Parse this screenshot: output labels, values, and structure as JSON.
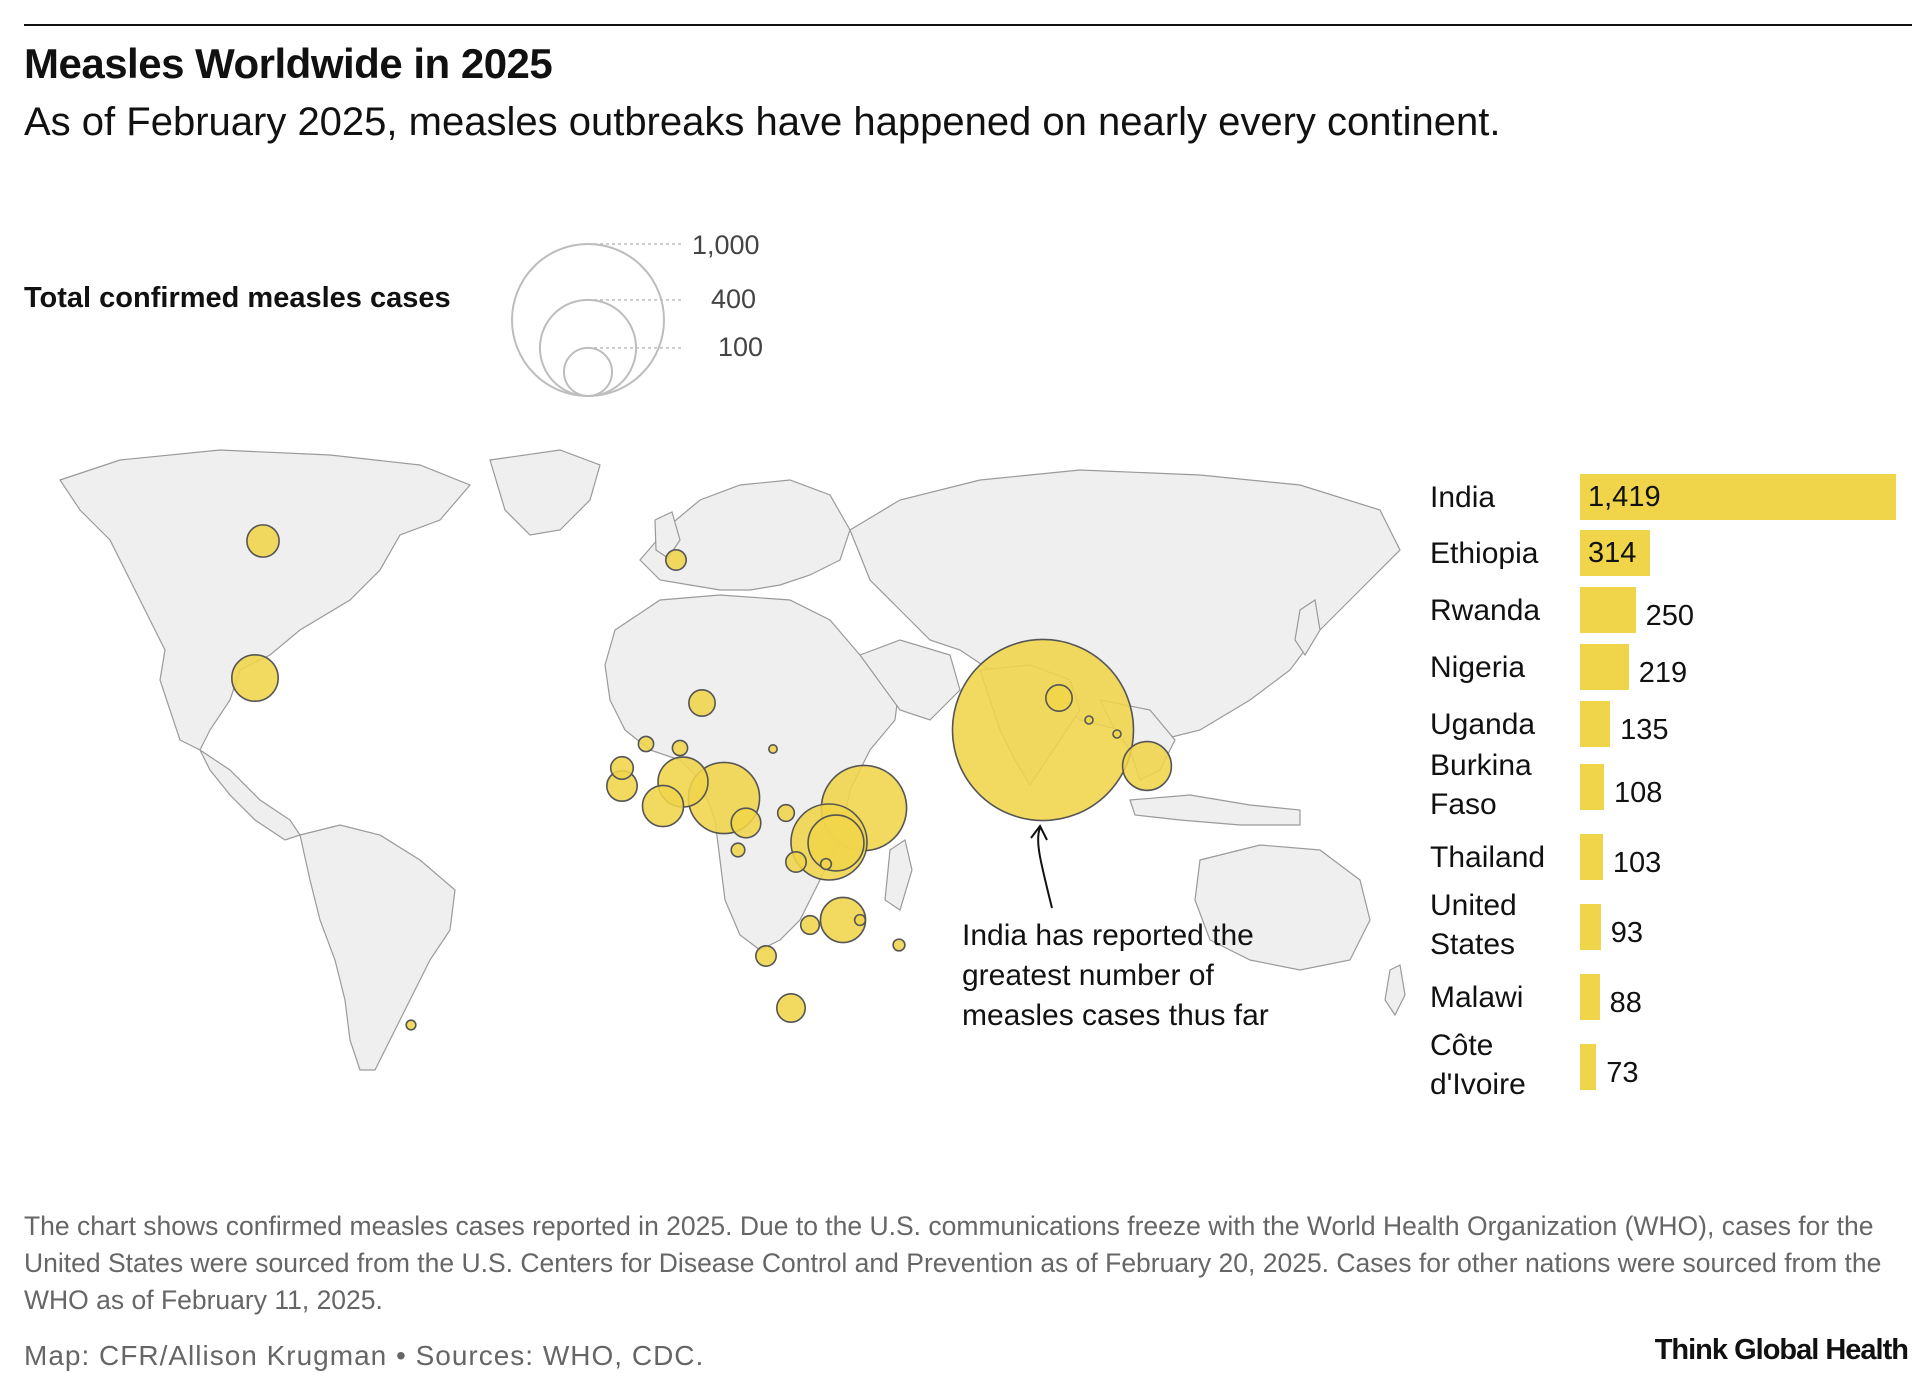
{
  "title": "Measles Worldwide in 2025",
  "subtitle": "As of February 2025, measles outbreaks have happened on nearly every continent.",
  "legend": {
    "title": "Total confirmed measles cases",
    "levels": [
      {
        "label": "1,000",
        "value": 1000
      },
      {
        "label": "400",
        "value": 400
      },
      {
        "label": "100",
        "value": 100
      }
    ]
  },
  "annotation": "India has reported the greatest number of measles cases thus far",
  "chart_data": {
    "type": "bar",
    "title": "Total confirmed measles cases",
    "categories": [
      "India",
      "Ethiopia",
      "Rwanda",
      "Nigeria",
      "Uganda",
      "Burkina Faso",
      "Thailand",
      "United States",
      "Malawi",
      "Côte d'Ivoire"
    ],
    "values": [
      1419,
      314,
      250,
      219,
      135,
      108,
      103,
      93,
      88,
      73
    ],
    "value_labels": [
      "1,419",
      "314",
      "250",
      "219",
      "135",
      "108",
      "103",
      "93",
      "88",
      "73"
    ],
    "bar_color": "#f0d54a"
  },
  "bubble_color": "#f0d54a",
  "land_color": "#efefef",
  "note": "The chart shows confirmed measles cases reported in 2025. Due to the U.S. communications freeze with the World Health Organization (WHO), cases for the United States were sourced from the U.S. Centers for Disease Control and Prevention as of February 20, 2025. Cases for other nations were sourced from the WHO as of February 11, 2025.",
  "credit": "Map: CFR/Allison Krugman • Sources: WHO, CDC.",
  "brand": "Think Global Health"
}
